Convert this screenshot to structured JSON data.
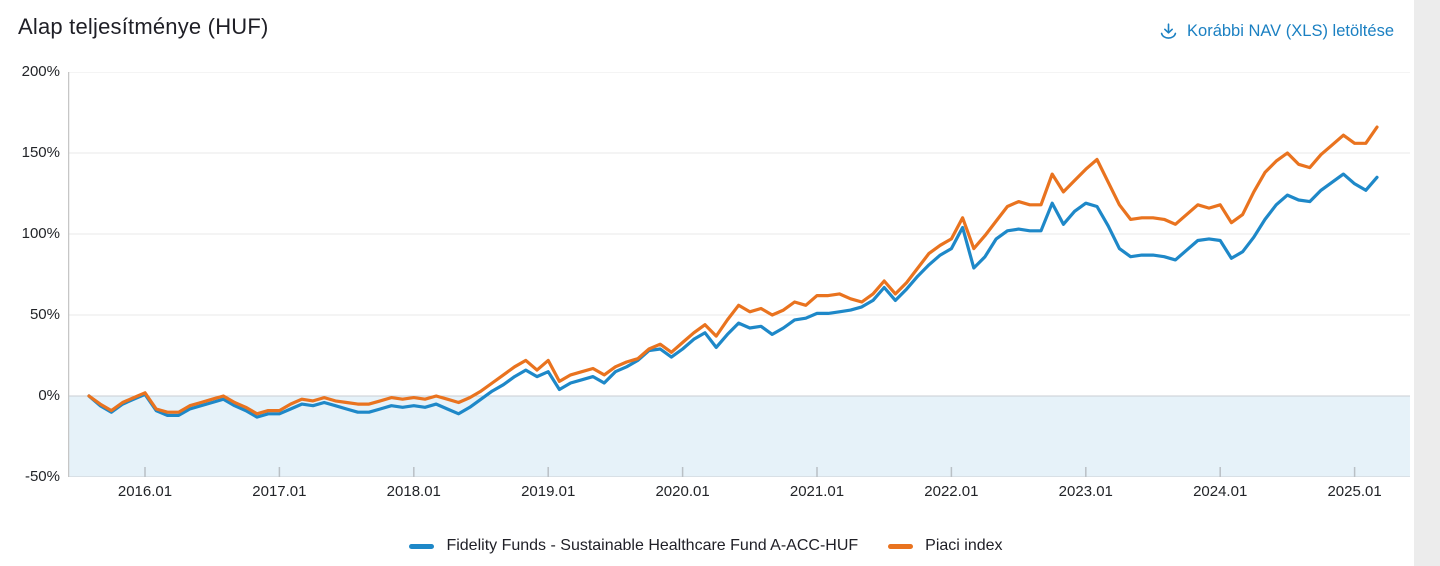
{
  "header": {
    "title": "Alap teljesítménye (HUF)",
    "download_link": {
      "label": "Korábbi NAV (XLS) letöltése",
      "icon": "download-icon",
      "color": "#1b80c2"
    }
  },
  "chart_data": {
    "type": "line",
    "title": "Alap teljesítménye (HUF)",
    "ylabel": "",
    "xlabel": "",
    "ylim": [
      -50,
      200
    ],
    "grid": "horizontal",
    "legend_position": "bottom",
    "negative_band_color": "#e6f2f9",
    "yticks": [
      "200%",
      "150%",
      "100%",
      "50%",
      "0%",
      "-50%"
    ],
    "ytick_values": [
      200,
      150,
      100,
      50,
      0,
      -50
    ],
    "xticks": [
      "2016.01",
      "2017.01",
      "2018.01",
      "2019.01",
      "2020.01",
      "2021.01",
      "2022.01",
      "2023.01",
      "2024.01",
      "2025.01"
    ],
    "x": [
      "2015.08",
      "2015.09",
      "2015.10",
      "2015.11",
      "2015.12",
      "2016.01",
      "2016.02",
      "2016.03",
      "2016.04",
      "2016.05",
      "2016.06",
      "2016.07",
      "2016.08",
      "2016.09",
      "2016.10",
      "2016.11",
      "2016.12",
      "2017.01",
      "2017.02",
      "2017.03",
      "2017.04",
      "2017.05",
      "2017.06",
      "2017.07",
      "2017.08",
      "2017.09",
      "2017.10",
      "2017.11",
      "2017.12",
      "2018.01",
      "2018.02",
      "2018.03",
      "2018.04",
      "2018.05",
      "2018.06",
      "2018.07",
      "2018.08",
      "2018.09",
      "2018.10",
      "2018.11",
      "2018.12",
      "2019.01",
      "2019.02",
      "2019.03",
      "2019.04",
      "2019.05",
      "2019.06",
      "2019.07",
      "2019.08",
      "2019.09",
      "2019.10",
      "2019.11",
      "2019.12",
      "2020.01",
      "2020.02",
      "2020.03",
      "2020.04",
      "2020.05",
      "2020.06",
      "2020.07",
      "2020.08",
      "2020.09",
      "2020.10",
      "2020.11",
      "2020.12",
      "2021.01",
      "2021.02",
      "2021.03",
      "2021.04",
      "2021.05",
      "2021.06",
      "2021.07",
      "2021.08",
      "2021.09",
      "2021.10",
      "2021.11",
      "2021.12",
      "2022.01",
      "2022.02",
      "2022.03",
      "2022.04",
      "2022.05",
      "2022.06",
      "2022.07",
      "2022.08",
      "2022.09",
      "2022.10",
      "2022.11",
      "2022.12",
      "2023.01",
      "2023.02",
      "2023.03",
      "2023.04",
      "2023.05",
      "2023.06",
      "2023.07",
      "2023.08",
      "2023.09",
      "2023.10",
      "2023.11",
      "2023.12",
      "2024.01",
      "2024.02",
      "2024.03",
      "2024.04",
      "2024.05",
      "2024.06",
      "2024.07",
      "2024.08",
      "2024.09",
      "2024.10",
      "2024.11",
      "2024.12",
      "2025.01",
      "2025.02",
      "2025.03"
    ],
    "series": [
      {
        "name": "Fidelity Funds - Sustainable Healthcare Fund A-ACC-HUF",
        "color": "#1e88c8",
        "values": [
          0,
          -6,
          -10,
          -5,
          -2,
          1,
          -9,
          -12,
          -12,
          -8,
          -6,
          -4,
          -2,
          -6,
          -9,
          -13,
          -11,
          -11,
          -8,
          -5,
          -6,
          -4,
          -6,
          -8,
          -10,
          -10,
          -8,
          -6,
          -7,
          -6,
          -7,
          -5,
          -8,
          -11,
          -7,
          -2,
          3,
          7,
          12,
          16,
          12,
          15,
          4,
          8,
          10,
          12,
          8,
          15,
          18,
          22,
          28,
          29,
          24,
          29,
          35,
          39,
          30,
          38,
          45,
          42,
          43,
          38,
          42,
          47,
          48,
          51,
          51,
          52,
          53,
          55,
          59,
          67,
          59,
          66,
          74,
          81,
          87,
          91,
          104,
          79,
          86,
          97,
          102,
          103,
          102,
          102,
          119,
          106,
          114,
          119,
          117,
          105,
          91,
          86,
          87,
          87,
          86,
          84,
          90,
          96,
          97,
          96,
          85,
          89,
          98,
          109,
          118,
          124,
          121,
          120,
          127,
          132,
          137,
          131,
          127,
          135
        ]
      },
      {
        "name": "Piaci index",
        "color": "#e9731f",
        "values": [
          0,
          -5,
          -9,
          -4,
          -1,
          2,
          -8,
          -10,
          -10,
          -6,
          -4,
          -2,
          0,
          -4,
          -7,
          -11,
          -9,
          -9,
          -5,
          -2,
          -3,
          -1,
          -3,
          -4,
          -5,
          -5,
          -3,
          -1,
          -2,
          -1,
          -2,
          0,
          -2,
          -4,
          -1,
          3,
          8,
          13,
          18,
          22,
          16,
          22,
          9,
          13,
          15,
          17,
          13,
          18,
          21,
          23,
          29,
          32,
          27,
          33,
          39,
          44,
          37,
          47,
          56,
          52,
          54,
          50,
          53,
          58,
          56,
          62,
          62,
          63,
          60,
          58,
          63,
          71,
          63,
          70,
          79,
          88,
          93,
          97,
          110,
          91,
          99,
          108,
          117,
          120,
          118,
          118,
          137,
          126,
          133,
          140,
          146,
          132,
          118,
          109,
          110,
          110,
          109,
          106,
          112,
          118,
          116,
          118,
          107,
          112,
          126,
          138,
          145,
          150,
          143,
          141,
          149,
          155,
          161,
          156,
          156,
          166
        ]
      }
    ]
  }
}
